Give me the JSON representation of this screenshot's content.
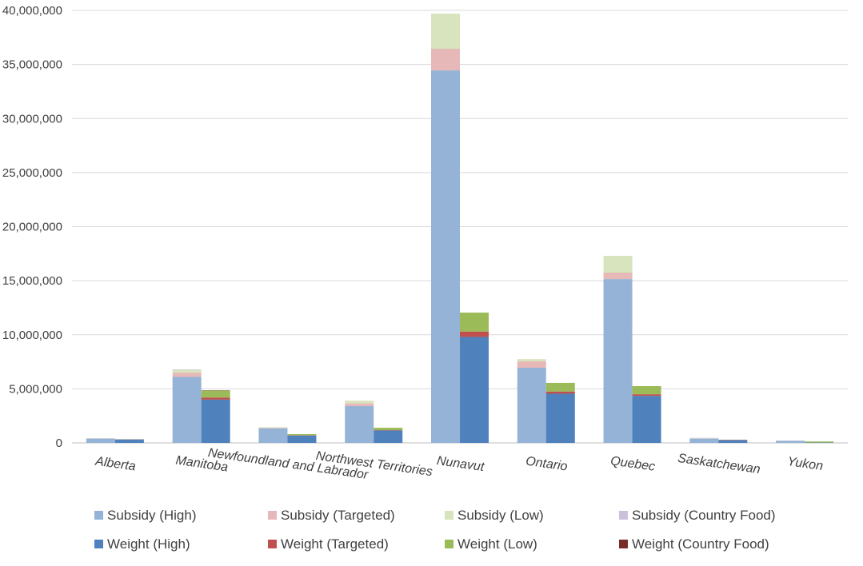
{
  "chart_data": {
    "type": "bar",
    "stacked": true,
    "grouped": true,
    "title": "",
    "xlabel": "",
    "ylabel": "",
    "ylim": [
      0,
      40000000
    ],
    "grid": true,
    "legend_position": "bottom",
    "y_ticks": [
      {
        "value": 0,
        "label": "0"
      },
      {
        "value": 5000000,
        "label": "5,000,000"
      },
      {
        "value": 10000000,
        "label": "10,000,000"
      },
      {
        "value": 15000000,
        "label": "15,000,000"
      },
      {
        "value": 20000000,
        "label": "20,000,000"
      },
      {
        "value": 25000000,
        "label": "25,000,000"
      },
      {
        "value": 30000000,
        "label": "30,000,000"
      },
      {
        "value": 35000000,
        "label": "35,000,000"
      },
      {
        "value": 40000000,
        "label": "40,000,000"
      }
    ],
    "categories": [
      "Alberta",
      "Manitoba",
      "Newfoundland and Labrador",
      "Northwest Territories",
      "Nunavut",
      "Ontario",
      "Quebec",
      "Saskatchewan",
      "Yukon"
    ],
    "groups": [
      "Subsidy",
      "Weight"
    ],
    "series": [
      {
        "name": "Subsidy (High)",
        "stack": "Subsidy",
        "color": "#95b3d7",
        "values": [
          400000,
          6100000,
          1350000,
          3400000,
          34450000,
          6950000,
          15150000,
          400000,
          200000
        ]
      },
      {
        "name": "Subsidy (Targeted)",
        "stack": "Subsidy",
        "color": "#e6b9b8",
        "values": [
          20000,
          400000,
          50000,
          250000,
          2000000,
          600000,
          600000,
          20000,
          10000
        ]
      },
      {
        "name": "Subsidy (Low)",
        "stack": "Subsidy",
        "color": "#d7e4bd",
        "values": [
          10000,
          250000,
          50000,
          250000,
          3250000,
          200000,
          1550000,
          20000,
          10000
        ]
      },
      {
        "name": "Subsidy (Country Food)",
        "stack": "Subsidy",
        "color": "#ccc1da",
        "values": [
          0,
          50000,
          0,
          0,
          0,
          0,
          0,
          20000,
          0
        ]
      },
      {
        "name": "Weight (High)",
        "stack": "Weight",
        "color": "#4f81bd",
        "values": [
          320000,
          4000000,
          680000,
          1150000,
          9800000,
          4550000,
          4350000,
          250000,
          30000
        ]
      },
      {
        "name": "Weight (Targeted)",
        "stack": "Weight",
        "color": "#c0504d",
        "values": [
          10000,
          200000,
          30000,
          30000,
          500000,
          200000,
          150000,
          10000,
          0
        ]
      },
      {
        "name": "Weight (Low)",
        "stack": "Weight",
        "color": "#9bbb59",
        "values": [
          10000,
          650000,
          100000,
          220000,
          1750000,
          800000,
          750000,
          10000,
          100000
        ]
      },
      {
        "name": "Weight (Country Food)",
        "stack": "Weight",
        "color": "#772c2a",
        "values": [
          0,
          20000,
          0,
          0,
          0,
          0,
          0,
          20000,
          0
        ]
      }
    ]
  }
}
